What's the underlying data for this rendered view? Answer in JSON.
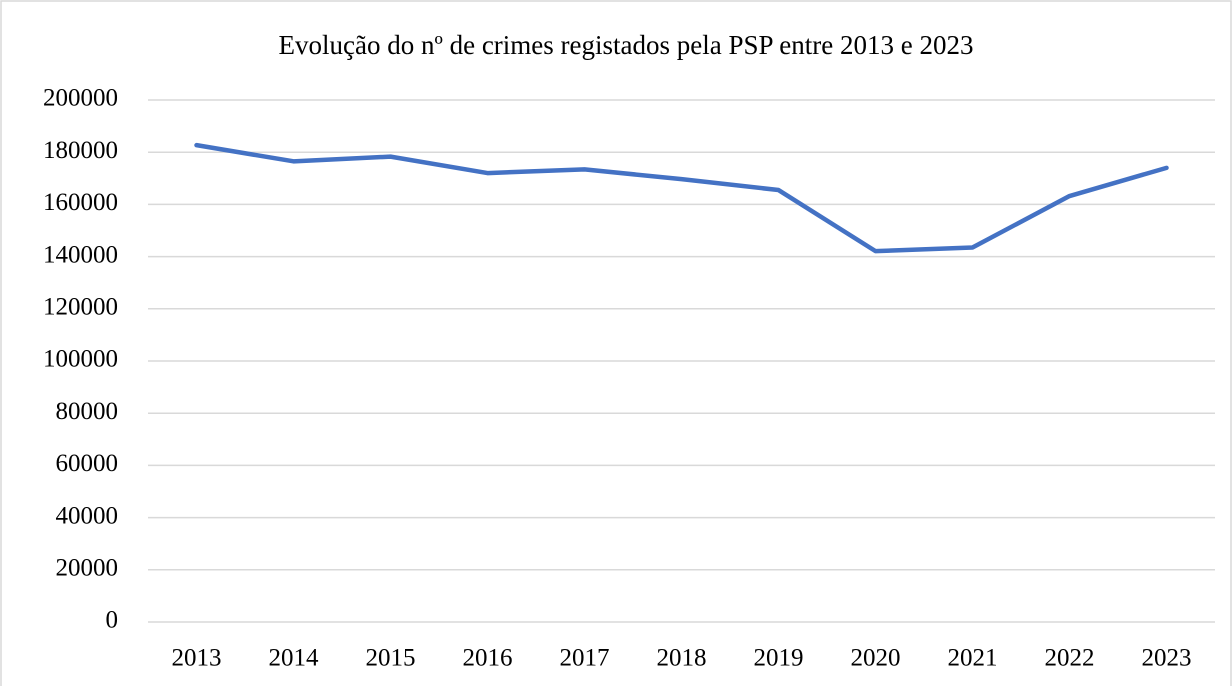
{
  "chart_data": {
    "type": "line",
    "title": "Evolução do nº de crimes registados pela PSP entre 2013 e 2023",
    "categories": [
      "2013",
      "2014",
      "2015",
      "2016",
      "2017",
      "2018",
      "2019",
      "2020",
      "2021",
      "2022",
      "2023"
    ],
    "series": [
      {
        "name": "Crimes registados",
        "color": "#4472c4",
        "values": [
          182700,
          176500,
          178300,
          172000,
          173400,
          169700,
          165500,
          142100,
          143500,
          163200,
          174000
        ]
      }
    ],
    "ylim": [
      0,
      200000
    ],
    "yticks": [
      0,
      20000,
      40000,
      60000,
      80000,
      100000,
      120000,
      140000,
      160000,
      180000,
      200000
    ],
    "grid": true
  }
}
